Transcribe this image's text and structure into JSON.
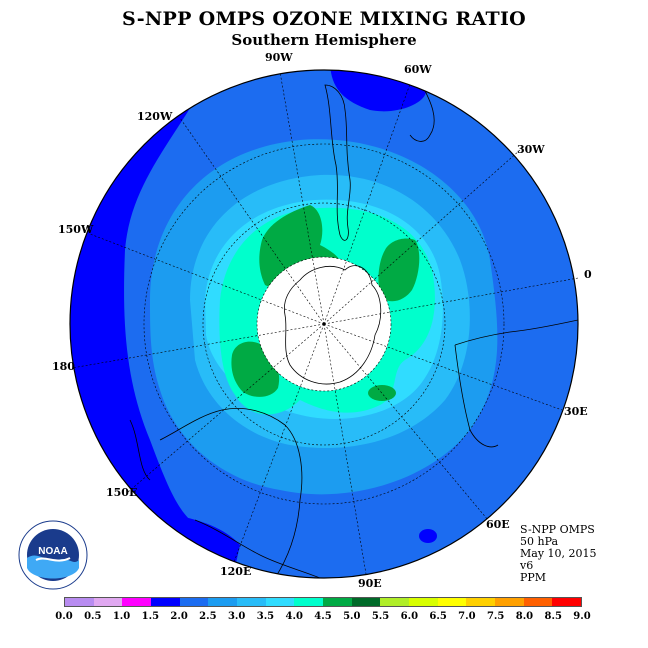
{
  "title": "S-NPP OMPS OZONE MIXING RATIO",
  "subtitle": "Southern Hemisphere",
  "longitude_labels": [
    "90W",
    "60W",
    "120W",
    "30W",
    "150W",
    "0",
    "180",
    "30E",
    "150E",
    "60E",
    "120E",
    "90E"
  ],
  "info": {
    "instrument": "S-NPP OMPS",
    "level": "50 hPa",
    "date": "May 10, 2015",
    "version": "v6",
    "units": "PPM"
  },
  "colorbar": {
    "ticks": [
      "0.0",
      "0.5",
      "1.0",
      "1.5",
      "2.0",
      "2.5",
      "3.0",
      "3.5",
      "4.0",
      "4.5",
      "5.0",
      "5.5",
      "6.0",
      "6.5",
      "7.0",
      "7.5",
      "8.0",
      "8.5",
      "9.0"
    ],
    "colors": [
      "#b88cf0",
      "#e0a8f0",
      "#ff00ff",
      "#0000ff",
      "#1c6cf0",
      "#1c9cf0",
      "#28bcf8",
      "#30dcff",
      "#00ffcc",
      "#00aa44",
      "#006a28",
      "#b0ee28",
      "#d8ff00",
      "#ffff00",
      "#ffd000",
      "#ffa000",
      "#ff6000",
      "#ff0000",
      "#8c6048"
    ]
  },
  "logo_text": "NOAA",
  "colors": {
    "deep_blue": "#0000ff",
    "mid_blue": "#1c6cf0",
    "light_blue": "#1c9cf0",
    "sky_blue": "#28bcf8",
    "cyan": "#30dcff",
    "aqua": "#00ffcc",
    "green": "#00aa44",
    "dark_green": "#006a28"
  }
}
